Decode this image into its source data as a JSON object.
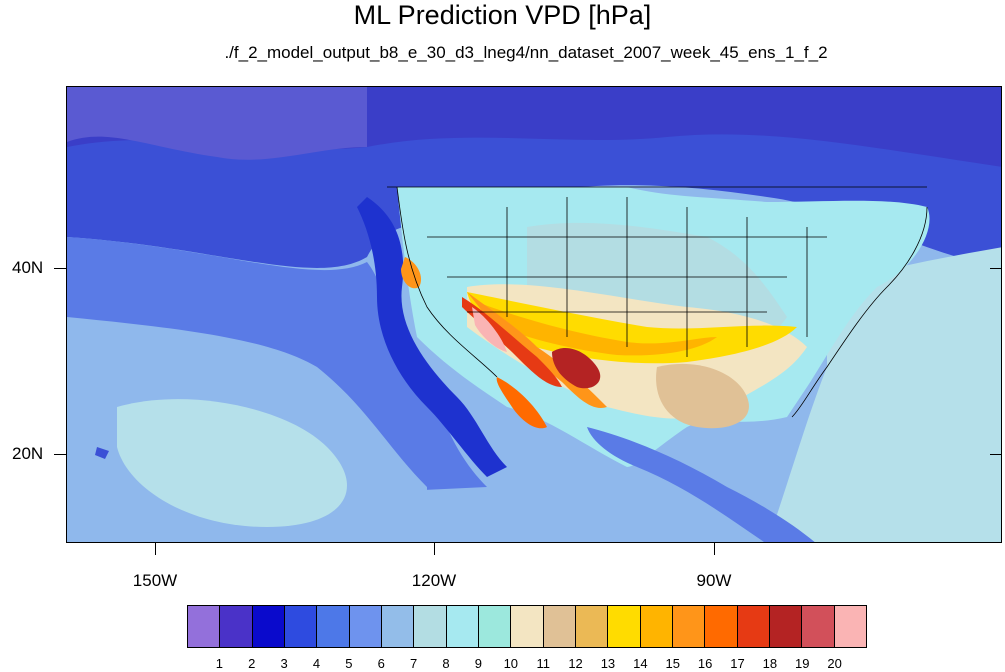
{
  "title": "ML Prediction VPD [hPa]",
  "subtitle": "./f_2_model_output_b8_e_30_d3_lneg4/nn_dataset_2007_week_45_ens_1_f_2",
  "axes": {
    "lat_labels": [
      "40N",
      "20N"
    ],
    "lon_labels": [
      "150W",
      "120W",
      "90W"
    ]
  },
  "colorbar": {
    "labels": [
      "1",
      "2",
      "3",
      "4",
      "5",
      "6",
      "7",
      "8",
      "9",
      "10",
      "11",
      "12",
      "13",
      "14",
      "15",
      "16",
      "17",
      "18",
      "19",
      "20"
    ],
    "colors": [
      "#9370db",
      "#4a32c8",
      "#0a0acc",
      "#2e4be0",
      "#4d78e8",
      "#6e93ee",
      "#93bde9",
      "#b3dde3",
      "#a6e9f0",
      "#9ce8dd",
      "#f3e5c2",
      "#e0c196",
      "#ebb955",
      "#ffdc00",
      "#ffb400",
      "#ff9519",
      "#ff6a00",
      "#e63a14",
      "#b42323",
      "#d2505a",
      "#fab4b4"
    ]
  },
  "map_palette": {
    "ocean_deep": "#3b50d6",
    "ocean_mid": "#5a7be6",
    "ocean_light": "#8fb8ec",
    "pale_cyan": "#b5e0ea",
    "arctic": "#3a3ec8",
    "north_dark": "#1e32cf"
  }
}
